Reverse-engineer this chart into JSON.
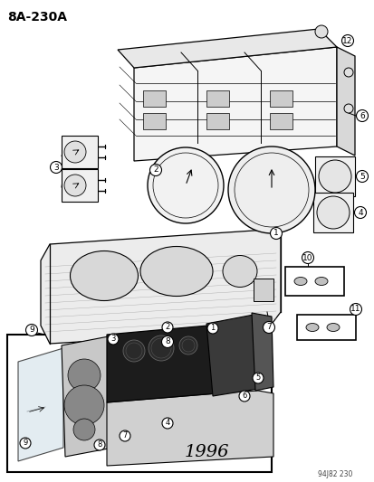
{
  "title": "8A-230A",
  "year_label": "1996",
  "footer": "94J82 230",
  "bg_color": "#ffffff",
  "line_color": "#000000",
  "text_color": "#000000",
  "fig_width": 4.14,
  "fig_height": 5.33,
  "dpi": 100
}
